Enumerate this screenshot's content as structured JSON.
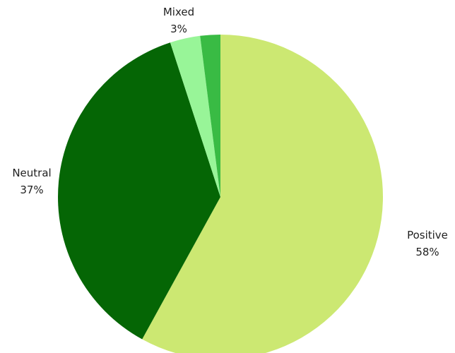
{
  "chart_data": {
    "type": "pie",
    "title": "",
    "slices": [
      {
        "label": "Positive",
        "value": 58,
        "value_label": "58%",
        "color": "#cce872"
      },
      {
        "label": "Neutral",
        "value": 37,
        "value_label": "37%",
        "color": "#056605"
      },
      {
        "label": "Mixed",
        "value": 3,
        "value_label": "3%",
        "color": "#98f598"
      },
      {
        "label": "",
        "value": 2,
        "value_label": "",
        "color": "#39bb44"
      }
    ],
    "start_angle": "12 o'clock",
    "direction": "clockwise",
    "legend": "none",
    "labels": "outside slices"
  }
}
